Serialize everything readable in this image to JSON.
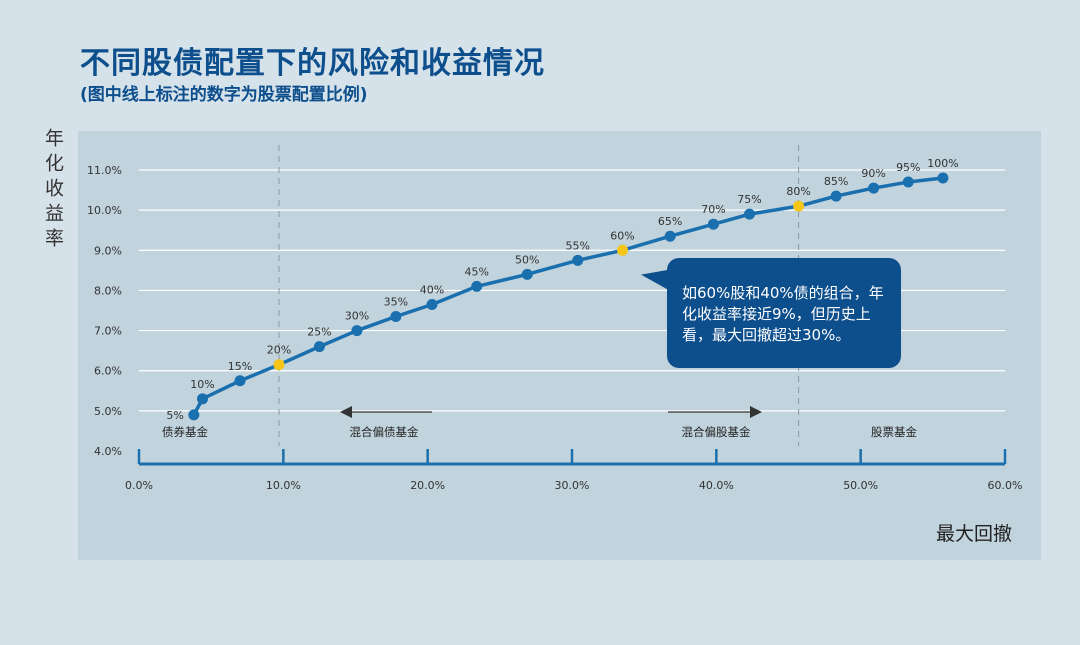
{
  "title": "不同股债配置下的风险和收益情况",
  "subtitle": "(图中线上标注的数字为股票配置比例)",
  "annotation": "如60%股和40%债的组合，年化收益率接近9%，但历史上看，最大回撤超过30%。",
  "zone_labels": [
    "债券基金",
    "混合偏债基金",
    "混合偏股基金",
    "股票基金"
  ],
  "colors": {
    "line": "#1a6fae",
    "highlight": "#f5c518",
    "axis": "#1a6fae",
    "title": "#0d4e8c",
    "panel": "#c1d3dd",
    "callout": "#0d4e8c"
  },
  "chart_data": {
    "type": "line",
    "title": "不同股债配置下的风险和收益情况",
    "xlabel": "最大回撤",
    "ylabel": "年化收益率",
    "xlim": [
      0,
      60
    ],
    "ylim": [
      4,
      11
    ],
    "xticks": [
      "0.0%",
      "10.0%",
      "20.0%",
      "30.0%",
      "40.0%",
      "50.0%",
      "60.0%"
    ],
    "yticks": [
      "4.0%",
      "5.0%",
      "6.0%",
      "7.0%",
      "8.0%",
      "9.0%",
      "10.0%",
      "11.0%"
    ],
    "grid": true,
    "series": [
      {
        "points": [
          {
            "label": "5%",
            "x": 3.8,
            "y": 4.9
          },
          {
            "label": "10%",
            "x": 4.4,
            "y": 5.3
          },
          {
            "label": "15%",
            "x": 7.0,
            "y": 5.75
          },
          {
            "label": "20%",
            "x": 9.7,
            "y": 6.15,
            "highlight": true
          },
          {
            "label": "25%",
            "x": 12.5,
            "y": 6.6
          },
          {
            "label": "30%",
            "x": 15.1,
            "y": 7.0
          },
          {
            "label": "35%",
            "x": 17.8,
            "y": 7.35
          },
          {
            "label": "40%",
            "x": 20.3,
            "y": 7.65
          },
          {
            "label": "45%",
            "x": 23.4,
            "y": 8.1
          },
          {
            "label": "50%",
            "x": 26.9,
            "y": 8.4
          },
          {
            "label": "55%",
            "x": 30.4,
            "y": 8.75
          },
          {
            "label": "60%",
            "x": 33.5,
            "y": 9.0,
            "highlight": true
          },
          {
            "label": "65%",
            "x": 36.8,
            "y": 9.35
          },
          {
            "label": "70%",
            "x": 39.8,
            "y": 9.65
          },
          {
            "label": "75%",
            "x": 42.3,
            "y": 9.9
          },
          {
            "label": "80%",
            "x": 45.7,
            "y": 10.1,
            "highlight": true
          },
          {
            "label": "85%",
            "x": 48.3,
            "y": 10.35
          },
          {
            "label": "90%",
            "x": 50.9,
            "y": 10.55
          },
          {
            "label": "95%",
            "x": 53.3,
            "y": 10.7
          },
          {
            "label": "100%",
            "x": 55.7,
            "y": 10.8
          }
        ]
      }
    ]
  }
}
